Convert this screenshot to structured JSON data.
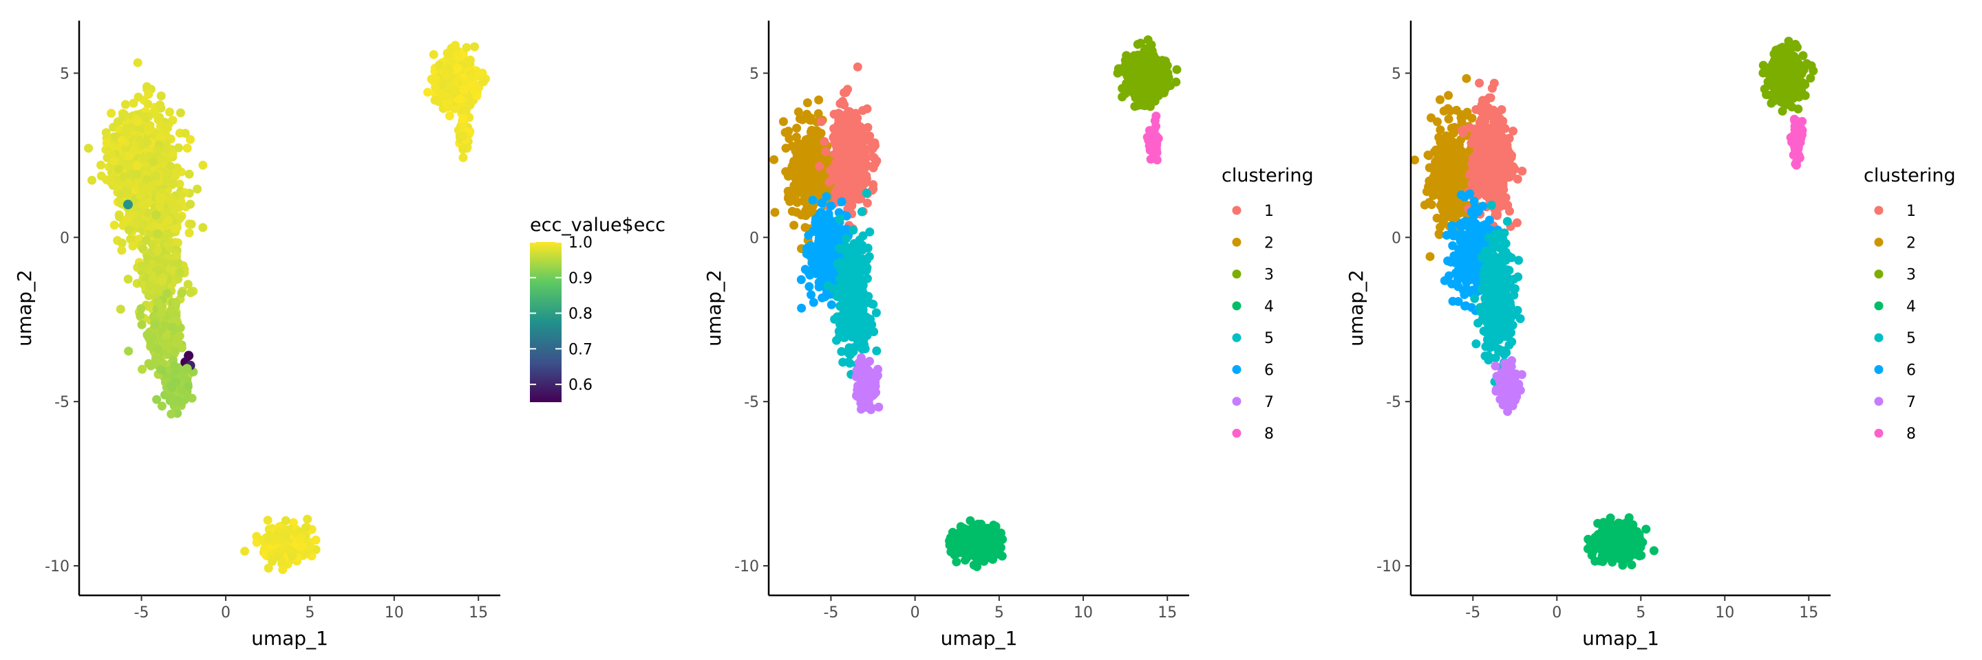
{
  "chart_data": [
    {
      "type": "scatter",
      "title": "",
      "xlabel": "umap_1",
      "ylabel": "umap_2",
      "xlim": [
        -8.7,
        16.3
      ],
      "ylim": [
        -10.9,
        6.6
      ],
      "xticks": [
        -5,
        0,
        5,
        10,
        15
      ],
      "xtick_labels": [
        "-5",
        "0",
        "5",
        "10",
        "15"
      ],
      "yticks": [
        5,
        0,
        -5,
        -10
      ],
      "ytick_labels": [
        "5",
        "0",
        "-5",
        "-10"
      ],
      "grid": false,
      "legend": {
        "type": "colorbar",
        "title": "ecc_value$ecc",
        "position": "right",
        "range": [
          0.55,
          1.0
        ],
        "ticks": [
          1.0,
          0.9,
          0.8,
          0.7,
          0.6
        ],
        "tick_labels": [
          "1.0",
          "0.9",
          "0.8",
          "0.7",
          "0.6"
        ],
        "colormap": "viridis",
        "stops": [
          "#440154",
          "#3b528b",
          "#21918c",
          "#5ec962",
          "#fde725"
        ]
      },
      "color_by": "ecc",
      "groups": [
        {
          "name": "main_upper",
          "cx": -5.0,
          "cy": 2.4,
          "sx": 1.2,
          "sy": 1.0,
          "n": 750,
          "value": 0.99
        },
        {
          "name": "main_upper_spread",
          "cx": -4.2,
          "cy": 0.8,
          "sx": 1.3,
          "sy": 1.0,
          "n": 250,
          "value": 0.985
        },
        {
          "name": "trunk_mid",
          "cx": -3.9,
          "cy": -1.2,
          "sx": 0.9,
          "sy": 0.8,
          "n": 200,
          "value": 0.975
        },
        {
          "name": "trunk_low",
          "cx": -3.6,
          "cy": -3.0,
          "sx": 0.7,
          "sy": 0.7,
          "n": 150,
          "value": 0.955
        },
        {
          "name": "tail",
          "cx": -2.9,
          "cy": -4.6,
          "sx": 0.5,
          "sy": 0.45,
          "n": 140,
          "value": 0.94
        },
        {
          "name": "top_right_island",
          "cx": 13.7,
          "cy": 4.8,
          "sx": 0.75,
          "sy": 0.5,
          "n": 380,
          "value": 1.0
        },
        {
          "name": "top_right_strip",
          "cx": 14.2,
          "cy": 3.1,
          "sx": 0.22,
          "sy": 0.45,
          "n": 45,
          "value": 1.0
        },
        {
          "name": "bottom_island",
          "cx": 3.6,
          "cy": -9.3,
          "sx": 0.85,
          "sy": 0.35,
          "n": 360,
          "value": 1.0
        }
      ],
      "highlight_points": [
        {
          "x": -5.8,
          "y": 1.0,
          "value": 0.78
        },
        {
          "x": -2.2,
          "y": -3.6,
          "value": 0.55
        },
        {
          "x": -2.4,
          "y": -3.8,
          "value": 0.55
        },
        {
          "x": -2.1,
          "y": -3.9,
          "value": 0.6
        },
        {
          "x": -2.3,
          "y": -4.0,
          "value": 0.93
        }
      ]
    },
    {
      "type": "scatter",
      "title": "",
      "xlabel": "umap_1",
      "ylabel": "umap_2",
      "xlim": [
        -8.7,
        16.3
      ],
      "ylim": [
        -10.9,
        6.6
      ],
      "xticks": [
        -5,
        0,
        5,
        10,
        15
      ],
      "xtick_labels": [
        "-5",
        "0",
        "5",
        "10",
        "15"
      ],
      "yticks": [
        5,
        0,
        -5,
        -10
      ],
      "ytick_labels": [
        "5",
        "0",
        "-5",
        "-10"
      ],
      "grid": false,
      "legend": {
        "type": "categorical",
        "title": "clustering",
        "position": "right",
        "items": [
          {
            "label": "1",
            "color": "#F8766D"
          },
          {
            "label": "2",
            "color": "#CD9600"
          },
          {
            "label": "3",
            "color": "#7CAE00"
          },
          {
            "label": "4",
            "color": "#00BE67"
          },
          {
            "label": "5",
            "color": "#00BFC4"
          },
          {
            "label": "6",
            "color": "#00A9FF"
          },
          {
            "label": "7",
            "color": "#C77CFF"
          },
          {
            "label": "8",
            "color": "#FF61CC"
          }
        ]
      },
      "color_by": "cluster",
      "groups": [
        {
          "name": "c2",
          "cluster": "2",
          "cx": -6.2,
          "cy": 2.0,
          "sx": 0.85,
          "sy": 1.0,
          "n": 350
        },
        {
          "name": "c1",
          "cluster": "1",
          "cx": -3.9,
          "cy": 2.4,
          "sx": 0.8,
          "sy": 1.05,
          "n": 420
        },
        {
          "name": "c6",
          "cluster": "6",
          "cx": -5.1,
          "cy": -0.5,
          "sx": 0.8,
          "sy": 0.9,
          "n": 260
        },
        {
          "name": "c5",
          "cluster": "5",
          "cx": -3.6,
          "cy": -1.9,
          "sx": 0.65,
          "sy": 1.2,
          "n": 300
        },
        {
          "name": "c7",
          "cluster": "7",
          "cx": -2.9,
          "cy": -4.5,
          "sx": 0.4,
          "sy": 0.45,
          "n": 130
        },
        {
          "name": "c3",
          "cluster": "3",
          "cx": 13.7,
          "cy": 4.9,
          "sx": 0.75,
          "sy": 0.45,
          "n": 380
        },
        {
          "name": "c8",
          "cluster": "8",
          "cx": 14.2,
          "cy": 2.9,
          "sx": 0.22,
          "sy": 0.4,
          "n": 45
        },
        {
          "name": "c4",
          "cluster": "4",
          "cx": 3.6,
          "cy": -9.3,
          "sx": 0.85,
          "sy": 0.35,
          "n": 360
        }
      ]
    },
    {
      "type": "scatter",
      "title": "",
      "xlabel": "umap_1",
      "ylabel": "umap_2",
      "xlim": [
        -8.7,
        16.3
      ],
      "ylim": [
        -10.9,
        6.6
      ],
      "xticks": [
        -5,
        0,
        5,
        10,
        15
      ],
      "xtick_labels": [
        "-5",
        "0",
        "5",
        "10",
        "15"
      ],
      "yticks": [
        5,
        0,
        -5,
        -10
      ],
      "ytick_labels": [
        "5",
        "0",
        "-5",
        "-10"
      ],
      "grid": false,
      "legend": {
        "type": "categorical",
        "title": "clustering",
        "position": "right",
        "items": [
          {
            "label": "1",
            "color": "#F8766D"
          },
          {
            "label": "2",
            "color": "#CD9600"
          },
          {
            "label": "3",
            "color": "#7CAE00"
          },
          {
            "label": "4",
            "color": "#00BE67"
          },
          {
            "label": "5",
            "color": "#00BFC4"
          },
          {
            "label": "6",
            "color": "#00A9FF"
          },
          {
            "label": "7",
            "color": "#C77CFF"
          },
          {
            "label": "8",
            "color": "#FF61CC"
          }
        ]
      },
      "color_by": "cluster",
      "groups": [
        {
          "name": "c2",
          "cluster": "2",
          "cx": -6.2,
          "cy": 2.0,
          "sx": 0.85,
          "sy": 1.0,
          "n": 350
        },
        {
          "name": "c1",
          "cluster": "1",
          "cx": -3.9,
          "cy": 2.4,
          "sx": 0.8,
          "sy": 1.05,
          "n": 420
        },
        {
          "name": "c6",
          "cluster": "6",
          "cx": -5.1,
          "cy": -0.5,
          "sx": 0.8,
          "sy": 0.9,
          "n": 260
        },
        {
          "name": "c5",
          "cluster": "5",
          "cx": -3.6,
          "cy": -1.9,
          "sx": 0.65,
          "sy": 1.2,
          "n": 300
        },
        {
          "name": "c7",
          "cluster": "7",
          "cx": -2.9,
          "cy": -4.5,
          "sx": 0.4,
          "sy": 0.45,
          "n": 130
        },
        {
          "name": "c3",
          "cluster": "3",
          "cx": 13.7,
          "cy": 4.9,
          "sx": 0.75,
          "sy": 0.45,
          "n": 380
        },
        {
          "name": "c8",
          "cluster": "8",
          "cx": 14.2,
          "cy": 2.9,
          "sx": 0.22,
          "sy": 0.4,
          "n": 45
        },
        {
          "name": "c4",
          "cluster": "4",
          "cx": 3.6,
          "cy": -9.3,
          "sx": 0.85,
          "sy": 0.35,
          "n": 360
        }
      ]
    }
  ]
}
